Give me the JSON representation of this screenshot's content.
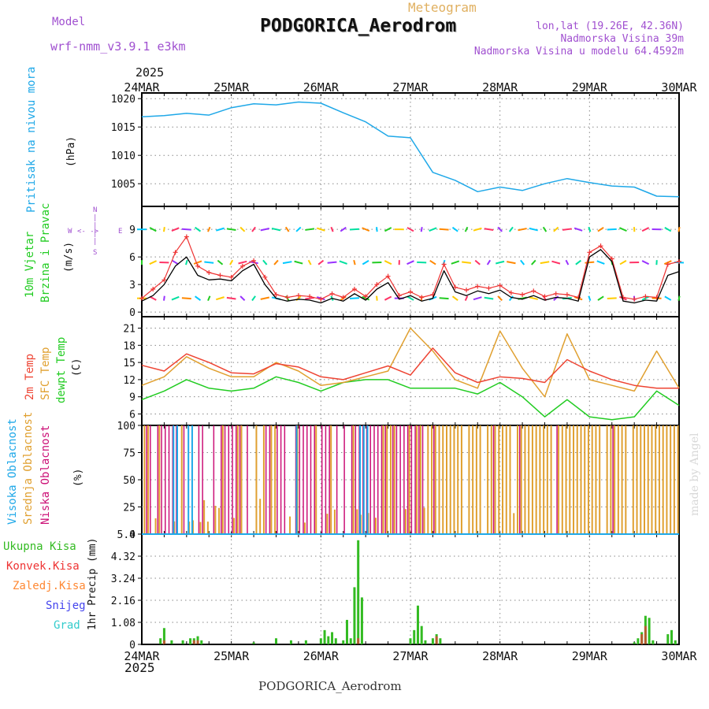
{
  "header": {
    "model_label": "Model",
    "model_name": "wrf-nmm_v3.9.1  e3km",
    "meteogram_label": "Meteogram",
    "station_title": "PODGORICA_Aerodrom",
    "lonlat": "lon,lat (19.26E, 42.36N)",
    "elevation": "Nadmorska Visina 39m",
    "model_elevation": "Nadmorska Visina u modelu 64.4592m",
    "year_top": "2025",
    "footer_station": "PODGORICA_Aerodrom",
    "watermark": "made by Angel"
  },
  "colors": {
    "pressure": "#1fa8e8",
    "wind_black": "#000000",
    "wind_red": "#ee3333",
    "temp_2m": "#ee4433",
    "temp_sfc": "#e0a030",
    "temp_dew": "#22cc22",
    "cloud_high": "#1fa8e8",
    "cloud_mid": "#e0a030",
    "cloud_low": "#cc1177",
    "precip_total": "#33bb22",
    "precip_conv": "#ee3333",
    "precip_frz": "#ff8833",
    "precip_snow": "#4444ee",
    "precip_hail": "#33cccc",
    "purple_text": "#a050d0",
    "cloud_text": "#cc1177"
  },
  "chart_data": [
    {
      "panel": "pressure",
      "type": "line",
      "ylabel_main": "Pritisak na nivou mora",
      "ylabel_unit": "(hPa)",
      "ylim": [
        1001,
        1021
      ],
      "yticks": [
        "1005",
        "1010",
        "1015",
        "1020"
      ],
      "x_days": [
        "24MAR",
        "25MAR",
        "26MAR",
        "27MAR",
        "28MAR",
        "29MAR",
        "30MAR"
      ],
      "x_hours": [
        0,
        6,
        12,
        18,
        24,
        30,
        36,
        42,
        48,
        54,
        60,
        66,
        72,
        78,
        84,
        90,
        96,
        102,
        108,
        114,
        120,
        126,
        132,
        138,
        144
      ],
      "values": [
        1016.8,
        1017.0,
        1017.4,
        1017.1,
        1018.4,
        1019.1,
        1018.9,
        1019.4,
        1019.2,
        1017.5,
        1015.9,
        1013.4,
        1013.1,
        1007.0,
        1005.6,
        1003.6,
        1004.4,
        1003.8,
        1005.0,
        1005.9,
        1005.2,
        1004.6,
        1004.4,
        1002.8,
        1002.7
      ]
    },
    {
      "panel": "wind",
      "type": "line",
      "ylabel_main": "10m Vjetar",
      "ylabel_sub": "Brzina i Pravac",
      "ylabel_unit": "(m/s)",
      "ylim": [
        -0.5,
        11.5
      ],
      "yticks": [
        "0",
        "3",
        "6",
        "9"
      ],
      "compass": [
        "N",
        "W",
        "E",
        "S"
      ],
      "x_hours": [
        0,
        3,
        6,
        9,
        12,
        15,
        18,
        21,
        24,
        27,
        30,
        33,
        36,
        39,
        42,
        45,
        48,
        51,
        54,
        57,
        60,
        63,
        66,
        69,
        72,
        75,
        78,
        81,
        84,
        87,
        90,
        93,
        96,
        99,
        102,
        105,
        108,
        111,
        114,
        117,
        120,
        123,
        126,
        129,
        132,
        135,
        138,
        141,
        144
      ],
      "speed": [
        1.2,
        1.8,
        3.0,
        5.0,
        6.0,
        4.0,
        3.5,
        3.6,
        3.4,
        4.5,
        5.2,
        3.0,
        1.5,
        1.2,
        1.4,
        1.3,
        1.0,
        1.5,
        1.2,
        2.0,
        1.3,
        2.5,
        3.2,
        1.4,
        1.8,
        1.2,
        1.5,
        4.5,
        2.2,
        1.8,
        2.3,
        2.0,
        2.4,
        1.6,
        1.4,
        1.8,
        1.3,
        1.6,
        1.5,
        1.2,
        6.0,
        6.8,
        5.5,
        1.2,
        1.0,
        1.3,
        1.2,
        4.0,
        4.4
      ],
      "gust": [
        1.5,
        2.5,
        3.5,
        6.5,
        8.2,
        5.0,
        4.3,
        4.0,
        3.8,
        5.0,
        5.6,
        3.8,
        1.9,
        1.6,
        1.8,
        1.7,
        1.4,
        2.0,
        1.6,
        2.5,
        1.7,
        3.0,
        3.9,
        1.8,
        2.2,
        1.6,
        1.9,
        5.2,
        2.7,
        2.4,
        2.8,
        2.6,
        2.9,
        2.1,
        1.9,
        2.3,
        1.7,
        2.0,
        1.9,
        1.6,
        6.5,
        7.2,
        5.8,
        1.6,
        1.4,
        1.7,
        1.6,
        5.2,
        5.5
      ]
    },
    {
      "panel": "temperature",
      "type": "line",
      "ylabel_main": "2m Temp",
      "ylabel_sfc": "SFC Temp",
      "ylabel_dew": "dewpt Temp",
      "ylabel_unit": "(C)",
      "ylim": [
        4,
        23
      ],
      "yticks": [
        "6",
        "9",
        "12",
        "15",
        "18",
        "21"
      ],
      "x_hours": [
        0,
        6,
        12,
        18,
        24,
        30,
        36,
        42,
        48,
        54,
        60,
        66,
        72,
        78,
        84,
        90,
        96,
        102,
        108,
        114,
        120,
        126,
        132,
        138,
        144
      ],
      "temp_2m": [
        14.5,
        13.5,
        16.5,
        15.0,
        13.2,
        13.0,
        14.8,
        14.2,
        12.5,
        12.0,
        13.2,
        14.4,
        12.8,
        17.5,
        13.2,
        11.5,
        12.5,
        12.2,
        11.5,
        15.5,
        13.5,
        12.0,
        11.0,
        10.5,
        10.5
      ],
      "temp_sfc": [
        11.0,
        12.5,
        16.0,
        14.0,
        12.5,
        12.5,
        15.0,
        13.5,
        11.0,
        11.5,
        12.5,
        13.5,
        21.0,
        17.0,
        12.0,
        10.5,
        20.5,
        14.0,
        9.0,
        20.0,
        12.0,
        11.0,
        10.0,
        17.0,
        10.5
      ],
      "temp_dew": [
        8.5,
        10.0,
        12.0,
        10.5,
        10.0,
        10.5,
        12.5,
        11.5,
        10.0,
        11.5,
        12.0,
        12.0,
        10.5,
        10.5,
        10.5,
        9.5,
        11.5,
        9.0,
        5.5,
        8.5,
        5.5,
        5.0,
        5.5,
        10.0,
        7.5
      ]
    },
    {
      "panel": "clouds",
      "type": "bar",
      "ylabel_high": "Visoka Oblacnost",
      "ylabel_mid": "Srednja Oblacnost",
      "ylabel_low": "Niska Oblacnost",
      "ylabel_unit": "(%)",
      "ylim": [
        0,
        100
      ],
      "yticks": [
        "0",
        "25",
        "50",
        "75",
        "100"
      ],
      "low_segments": [
        [
          0,
          18,
          0.75
        ],
        [
          18,
          40,
          0.55
        ],
        [
          40,
          56,
          0.45
        ],
        [
          56,
          76,
          0.85
        ],
        [
          76,
          144,
          0.08
        ]
      ],
      "mid_segments": [
        [
          0,
          24,
          0.3
        ],
        [
          24,
          48,
          0.25
        ],
        [
          48,
          64,
          0.2
        ],
        [
          64,
          76,
          0.7
        ],
        [
          76,
          144,
          0.92
        ]
      ],
      "high_segments": [
        [
          6,
          14,
          0.6
        ],
        [
          41,
          45,
          0.6
        ],
        [
          58,
          61,
          0.7
        ]
      ]
    },
    {
      "panel": "precip",
      "type": "bar",
      "ylabel_unit": "1hr Precip (mm)",
      "ylim": [
        0,
        5.4
      ],
      "yticks": [
        "0",
        "1.08",
        "2.16",
        "3.24",
        "4.32",
        "5.4"
      ],
      "legend": [
        "Ukupna  Kisa",
        "Konvek.Kisa",
        "Zaledj.Kisa",
        "Snijeg",
        "Grad"
      ],
      "total": [
        {
          "h": 5,
          "v": 0.3
        },
        {
          "h": 6,
          "v": 0.8
        },
        {
          "h": 8,
          "v": 0.2
        },
        {
          "h": 11,
          "v": 0.2
        },
        {
          "h": 13,
          "v": 0.3
        },
        {
          "h": 14,
          "v": 0.3
        },
        {
          "h": 15,
          "v": 0.4
        },
        {
          "h": 16,
          "v": 0.2
        },
        {
          "h": 30,
          "v": 0.1
        },
        {
          "h": 36,
          "v": 0.3
        },
        {
          "h": 40,
          "v": 0.2
        },
        {
          "h": 44,
          "v": 0.2
        },
        {
          "h": 48,
          "v": 0.3
        },
        {
          "h": 49,
          "v": 0.7
        },
        {
          "h": 50,
          "v": 0.4
        },
        {
          "h": 51,
          "v": 0.6
        },
        {
          "h": 52,
          "v": 0.3
        },
        {
          "h": 54,
          "v": 0.2
        },
        {
          "h": 55,
          "v": 1.2
        },
        {
          "h": 56,
          "v": 0.3
        },
        {
          "h": 57,
          "v": 2.8
        },
        {
          "h": 58,
          "v": 5.1
        },
        {
          "h": 59,
          "v": 2.3
        },
        {
          "h": 72,
          "v": 0.3
        },
        {
          "h": 73,
          "v": 0.7
        },
        {
          "h": 74,
          "v": 1.9
        },
        {
          "h": 75,
          "v": 0.9
        },
        {
          "h": 76,
          "v": 0.2
        },
        {
          "h": 78,
          "v": 0.3
        },
        {
          "h": 79,
          "v": 0.5
        },
        {
          "h": 80,
          "v": 0.3
        },
        {
          "h": 132,
          "v": 0.1
        },
        {
          "h": 133,
          "v": 0.3
        },
        {
          "h": 134,
          "v": 0.6
        },
        {
          "h": 135,
          "v": 1.4
        },
        {
          "h": 136,
          "v": 1.3
        },
        {
          "h": 137,
          "v": 0.2
        },
        {
          "h": 141,
          "v": 0.5
        },
        {
          "h": 142,
          "v": 0.7
        },
        {
          "h": 143,
          "v": 0.2
        }
      ],
      "convective": [
        {
          "h": 6,
          "v": 0.2
        },
        {
          "h": 14,
          "v": 0.2
        },
        {
          "h": 15,
          "v": 0.2
        },
        {
          "h": 58,
          "v": 0.3
        },
        {
          "h": 79,
          "v": 0.4
        },
        {
          "h": 134,
          "v": 0.5
        },
        {
          "h": 135,
          "v": 0.9
        }
      ]
    }
  ]
}
